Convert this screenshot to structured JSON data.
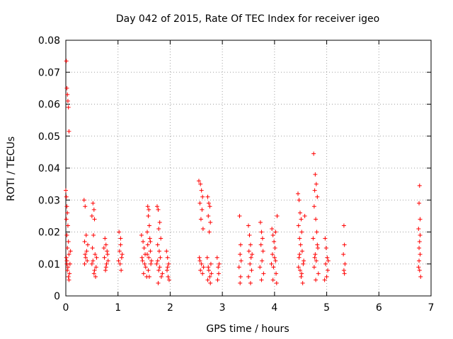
{
  "chart_data": {
    "type": "scatter",
    "title": "Day 042 of 2015, Rate Of TEC Index for receiver igeo",
    "xlabel": "GPS time / hours",
    "ylabel": "ROTI / TECUs",
    "xlim": [
      0,
      7
    ],
    "ylim": [
      0,
      0.08
    ],
    "xticks": [
      0,
      1,
      2,
      3,
      4,
      5,
      6,
      7
    ],
    "xtick_labels": [
      "0",
      "1",
      "2",
      "3",
      "4",
      "5",
      "6",
      "7"
    ],
    "yticks": [
      0,
      0.01,
      0.02,
      0.03,
      0.04,
      0.05,
      0.06,
      0.07,
      0.08
    ],
    "ytick_labels": [
      "0",
      "0.01",
      "0.02",
      "0.03",
      "0.04",
      "0.05",
      "0.06",
      "0.07",
      "0.08"
    ],
    "grid": true,
    "marker": "+",
    "color": "#ff0000",
    "series": [
      {
        "name": "ROTI",
        "points": [
          [
            0.01,
            0.0735
          ],
          [
            0.02,
            0.065
          ],
          [
            0.03,
            0.063
          ],
          [
            0.04,
            0.061
          ],
          [
            0.05,
            0.059
          ],
          [
            0.06,
            0.0515
          ],
          [
            0.0,
            0.033
          ],
          [
            0.01,
            0.031
          ],
          [
            0.02,
            0.028
          ],
          [
            0.03,
            0.026
          ],
          [
            0.01,
            0.024
          ],
          [
            0.04,
            0.022
          ],
          [
            0.02,
            0.019
          ],
          [
            0.05,
            0.017
          ],
          [
            0.03,
            0.015
          ],
          [
            0.06,
            0.013
          ],
          [
            0.02,
            0.011
          ],
          [
            0.04,
            0.009
          ],
          [
            0.07,
            0.007
          ],
          [
            0.03,
            0.008
          ],
          [
            0.05,
            0.006
          ],
          [
            0.08,
            0.01
          ],
          [
            0.01,
            0.012
          ],
          [
            0.06,
            0.005
          ],
          [
            0.09,
            0.014
          ],
          [
            0.02,
            0.01
          ],
          [
            0.35,
            0.03
          ],
          [
            0.37,
            0.028
          ],
          [
            0.39,
            0.019
          ],
          [
            0.36,
            0.017
          ],
          [
            0.4,
            0.014
          ],
          [
            0.38,
            0.012
          ],
          [
            0.36,
            0.01
          ],
          [
            0.41,
            0.011
          ],
          [
            0.37,
            0.013
          ],
          [
            0.42,
            0.016
          ],
          [
            0.52,
            0.029
          ],
          [
            0.54,
            0.027
          ],
          [
            0.5,
            0.025
          ],
          [
            0.55,
            0.024
          ],
          [
            0.53,
            0.019
          ],
          [
            0.51,
            0.015
          ],
          [
            0.56,
            0.013
          ],
          [
            0.52,
            0.011
          ],
          [
            0.58,
            0.009
          ],
          [
            0.54,
            0.007
          ],
          [
            0.57,
            0.006
          ],
          [
            0.5,
            0.01
          ],
          [
            0.59,
            0.012
          ],
          [
            0.55,
            0.008
          ],
          [
            0.75,
            0.018
          ],
          [
            0.77,
            0.016
          ],
          [
            0.79,
            0.014
          ],
          [
            0.74,
            0.012
          ],
          [
            0.78,
            0.01
          ],
          [
            0.76,
            0.008
          ],
          [
            0.8,
            0.013
          ],
          [
            0.73,
            0.015
          ],
          [
            0.81,
            0.011
          ],
          [
            0.77,
            0.009
          ],
          [
            1.02,
            0.02
          ],
          [
            1.05,
            0.018
          ],
          [
            1.03,
            0.014
          ],
          [
            1.07,
            0.012
          ],
          [
            1.04,
            0.01
          ],
          [
            1.06,
            0.008
          ],
          [
            1.01,
            0.011
          ],
          [
            1.08,
            0.013
          ],
          [
            1.05,
            0.016
          ],
          [
            1.45,
            0.019
          ],
          [
            1.48,
            0.017
          ],
          [
            1.5,
            0.015
          ],
          [
            1.52,
            0.013
          ],
          [
            1.47,
            0.011
          ],
          [
            1.53,
            0.009
          ],
          [
            1.49,
            0.007
          ],
          [
            1.55,
            0.006
          ],
          [
            1.51,
            0.01
          ],
          [
            1.46,
            0.012
          ],
          [
            1.57,
            0.028
          ],
          [
            1.59,
            0.027
          ],
          [
            1.58,
            0.025
          ],
          [
            1.6,
            0.022
          ],
          [
            1.56,
            0.02
          ],
          [
            1.61,
            0.018
          ],
          [
            1.57,
            0.016
          ],
          [
            1.62,
            0.014
          ],
          [
            1.59,
            0.012
          ],
          [
            1.63,
            0.01
          ],
          [
            1.58,
            0.008
          ],
          [
            1.6,
            0.006
          ],
          [
            1.64,
            0.011
          ],
          [
            1.56,
            0.013
          ],
          [
            1.62,
            0.017
          ],
          [
            1.75,
            0.028
          ],
          [
            1.77,
            0.027
          ],
          [
            1.8,
            0.023
          ],
          [
            1.78,
            0.021
          ],
          [
            1.82,
            0.018
          ],
          [
            1.76,
            0.016
          ],
          [
            1.79,
            0.014
          ],
          [
            1.81,
            0.012
          ],
          [
            1.74,
            0.01
          ],
          [
            1.78,
            0.008
          ],
          [
            1.83,
            0.006
          ],
          [
            1.77,
            0.004
          ],
          [
            1.8,
            0.009
          ],
          [
            1.85,
            0.007
          ],
          [
            1.76,
            0.011
          ],
          [
            1.93,
            0.014
          ],
          [
            1.95,
            0.012
          ],
          [
            1.97,
            0.01
          ],
          [
            1.94,
            0.008
          ],
          [
            1.96,
            0.006
          ],
          [
            1.98,
            0.005
          ],
          [
            1.95,
            0.009
          ],
          [
            2.55,
            0.036
          ],
          [
            2.58,
            0.035
          ],
          [
            2.6,
            0.033
          ],
          [
            2.62,
            0.031
          ],
          [
            2.57,
            0.029
          ],
          [
            2.61,
            0.027
          ],
          [
            2.59,
            0.024
          ],
          [
            2.63,
            0.021
          ],
          [
            2.56,
            0.012
          ],
          [
            2.6,
            0.01
          ],
          [
            2.58,
            0.008
          ],
          [
            2.62,
            0.007
          ],
          [
            2.64,
            0.009
          ],
          [
            2.57,
            0.011
          ],
          [
            2.72,
            0.031
          ],
          [
            2.74,
            0.029
          ],
          [
            2.76,
            0.028
          ],
          [
            2.73,
            0.025
          ],
          [
            2.77,
            0.023
          ],
          [
            2.75,
            0.02
          ],
          [
            2.71,
            0.012
          ],
          [
            2.78,
            0.01
          ],
          [
            2.74,
            0.008
          ],
          [
            2.76,
            0.006
          ],
          [
            2.72,
            0.005
          ],
          [
            2.79,
            0.007
          ],
          [
            2.73,
            0.009
          ],
          [
            2.77,
            0.004
          ],
          [
            2.9,
            0.012
          ],
          [
            2.92,
            0.009
          ],
          [
            2.93,
            0.007
          ],
          [
            2.91,
            0.005
          ],
          [
            2.94,
            0.01
          ],
          [
            3.33,
            0.025
          ],
          [
            3.35,
            0.016
          ],
          [
            3.34,
            0.013
          ],
          [
            3.36,
            0.011
          ],
          [
            3.32,
            0.009
          ],
          [
            3.35,
            0.006
          ],
          [
            3.34,
            0.004
          ],
          [
            3.5,
            0.022
          ],
          [
            3.52,
            0.019
          ],
          [
            3.54,
            0.016
          ],
          [
            3.51,
            0.014
          ],
          [
            3.55,
            0.012
          ],
          [
            3.53,
            0.01
          ],
          [
            3.56,
            0.008
          ],
          [
            3.5,
            0.006
          ],
          [
            3.54,
            0.004
          ],
          [
            3.57,
            0.013
          ],
          [
            3.73,
            0.023
          ],
          [
            3.75,
            0.02
          ],
          [
            3.77,
            0.018
          ],
          [
            3.74,
            0.016
          ],
          [
            3.78,
            0.014
          ],
          [
            3.76,
            0.011
          ],
          [
            3.72,
            0.009
          ],
          [
            3.79,
            0.007
          ],
          [
            3.75,
            0.005
          ],
          [
            3.95,
            0.021
          ],
          [
            3.97,
            0.019
          ],
          [
            3.99,
            0.017
          ],
          [
            4.01,
            0.015
          ],
          [
            3.96,
            0.013
          ],
          [
            4.02,
            0.011
          ],
          [
            3.98,
            0.009
          ],
          [
            4.03,
            0.007
          ],
          [
            3.97,
            0.005
          ],
          [
            4.04,
            0.004
          ],
          [
            4.0,
            0.012
          ],
          [
            4.05,
            0.025
          ],
          [
            4.02,
            0.02
          ],
          [
            3.94,
            0.01
          ],
          [
            4.45,
            0.032
          ],
          [
            4.47,
            0.03
          ],
          [
            4.49,
            0.026
          ],
          [
            4.51,
            0.024
          ],
          [
            4.46,
            0.022
          ],
          [
            4.52,
            0.02
          ],
          [
            4.48,
            0.018
          ],
          [
            4.5,
            0.016
          ],
          [
            4.53,
            0.014
          ],
          [
            4.47,
            0.012
          ],
          [
            4.55,
            0.01
          ],
          [
            4.49,
            0.008
          ],
          [
            4.51,
            0.006
          ],
          [
            4.54,
            0.004
          ],
          [
            4.46,
            0.009
          ],
          [
            4.56,
            0.011
          ],
          [
            4.48,
            0.013
          ],
          [
            4.58,
            0.025
          ],
          [
            4.52,
            0.007
          ],
          [
            4.75,
            0.0445
          ],
          [
            4.78,
            0.038
          ],
          [
            4.8,
            0.035
          ],
          [
            4.77,
            0.033
          ],
          [
            4.82,
            0.031
          ],
          [
            4.76,
            0.028
          ],
          [
            4.79,
            0.024
          ],
          [
            4.81,
            0.02
          ],
          [
            4.74,
            0.018
          ],
          [
            4.83,
            0.015
          ],
          [
            4.78,
            0.013
          ],
          [
            4.8,
            0.011
          ],
          [
            4.76,
            0.009
          ],
          [
            4.84,
            0.007
          ],
          [
            4.79,
            0.005
          ],
          [
            4.77,
            0.012
          ],
          [
            4.82,
            0.016
          ],
          [
            4.97,
            0.018
          ],
          [
            4.99,
            0.015
          ],
          [
            5.01,
            0.012
          ],
          [
            4.98,
            0.01
          ],
          [
            5.02,
            0.008
          ],
          [
            5.0,
            0.006
          ],
          [
            4.96,
            0.005
          ],
          [
            5.03,
            0.011
          ],
          [
            5.33,
            0.022
          ],
          [
            5.34,
            0.016
          ],
          [
            5.32,
            0.013
          ],
          [
            5.35,
            0.01
          ],
          [
            5.33,
            0.008
          ],
          [
            5.34,
            0.007
          ],
          [
            6.78,
            0.0345
          ],
          [
            6.77,
            0.029
          ],
          [
            6.79,
            0.024
          ],
          [
            6.76,
            0.021
          ],
          [
            6.78,
            0.017
          ],
          [
            6.77,
            0.015
          ],
          [
            6.79,
            0.013
          ],
          [
            6.76,
            0.009
          ],
          [
            6.78,
            0.008
          ],
          [
            6.8,
            0.006
          ],
          [
            6.77,
            0.011
          ],
          [
            6.79,
            0.019
          ]
        ]
      }
    ]
  }
}
